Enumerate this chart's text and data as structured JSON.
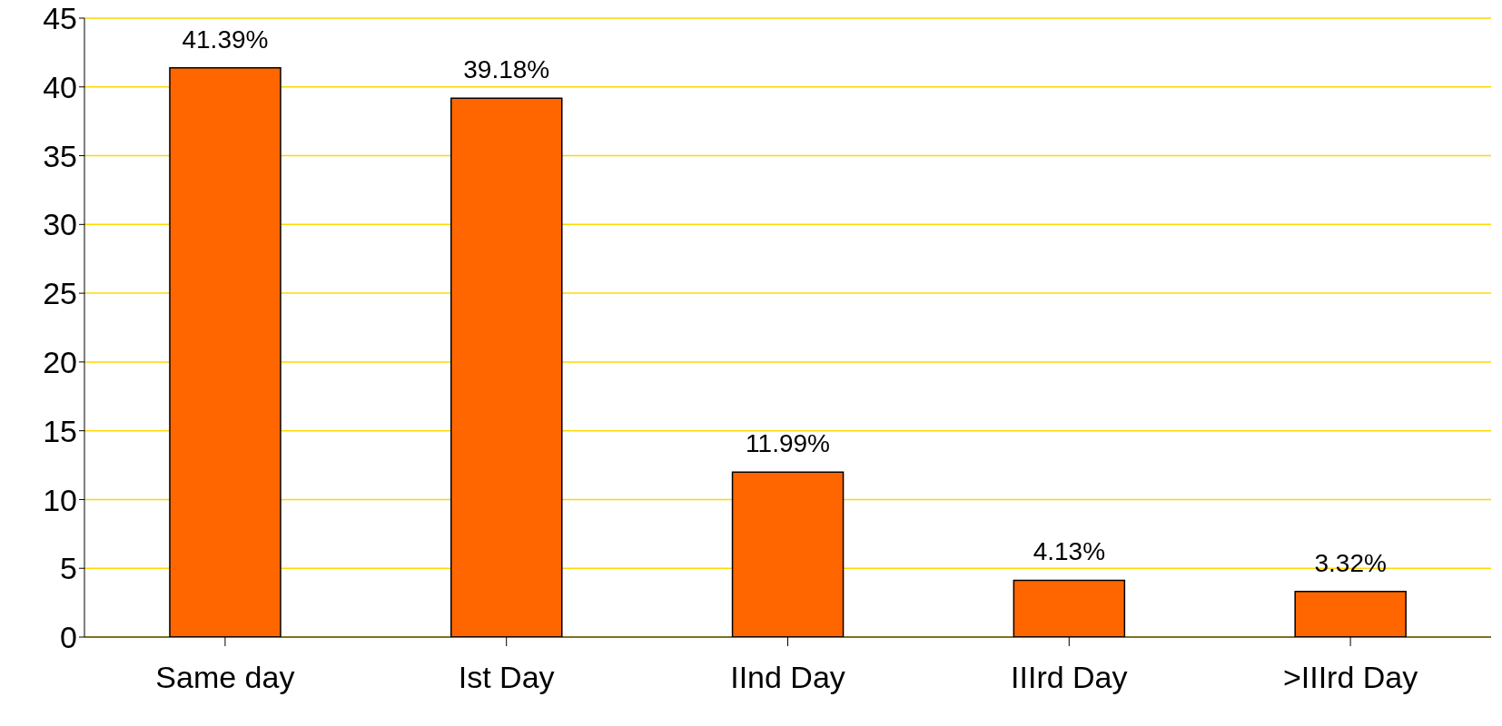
{
  "chart_data": {
    "type": "bar",
    "categories": [
      "Same day",
      "Ist Day",
      "IInd Day",
      "IIIrd Day",
      ">IIIrd Day"
    ],
    "values": [
      41.39,
      39.18,
      11.99,
      4.13,
      3.32
    ],
    "value_labels": [
      "41.39%",
      "39.18%",
      "11.99%",
      "4.13%",
      "3.32%"
    ],
    "color": "#ff6600",
    "ylim": [
      0,
      45
    ],
    "yticks": [
      0,
      5,
      10,
      15,
      20,
      25,
      30,
      35,
      40,
      45
    ],
    "grid": "y"
  }
}
